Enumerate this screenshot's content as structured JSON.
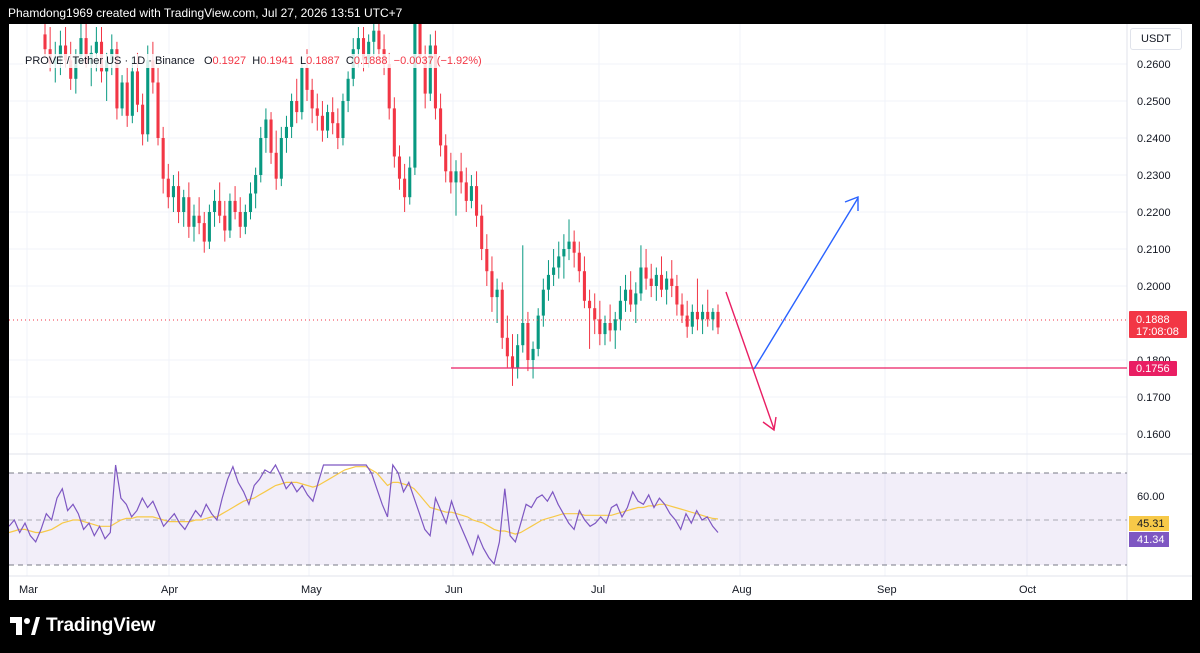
{
  "header": {
    "credit": "Phamdong1969 created with TradingView.com, Jul 27, 2026 13:51 UTC+7"
  },
  "legend": {
    "symbol": "PROVE / Tether US · 1D · Binance",
    "open_label": "O",
    "open": "0.1927",
    "high_label": "H",
    "high": "0.1941",
    "low_label": "L",
    "low": "0.1887",
    "close_label": "C",
    "close": "0.1888",
    "change": "−0.0037 (−1.92%)"
  },
  "price_axis": {
    "unit": "USDT",
    "ticks": [
      "0.2600",
      "0.2500",
      "0.2400",
      "0.2300",
      "0.2200",
      "0.2100",
      "0.2000",
      "0.1800",
      "0.1700",
      "0.1600"
    ]
  },
  "price_badge": {
    "price": "0.1888",
    "countdown": "17:08:08"
  },
  "support_badge": {
    "price": "0.1756"
  },
  "rsi": {
    "level_label": "60.00",
    "ma_value": "45.31",
    "rsi_value": "41.34"
  },
  "time_axis": {
    "labels": [
      "Mar",
      "Apr",
      "May",
      "Jun",
      "Jul",
      "Aug",
      "Sep",
      "Oct"
    ]
  },
  "footer": {
    "brand": "TradingView"
  },
  "colors": {
    "up": "#089981",
    "down": "#f23645",
    "rsi": "#7e57c2",
    "rsi_ma": "#f7c948",
    "arrow_up": "#2962ff",
    "arrow_down": "#e91e63"
  },
  "chart_data": {
    "type": "candlestick",
    "title": "PROVE / Tether US · 1D · Binance",
    "ylim": [
      0.155,
      0.265
    ],
    "support_level": 0.1756,
    "last_price": 0.1888,
    "x_labels": [
      "Mar",
      "Apr",
      "May",
      "Jun",
      "Jul",
      "Aug",
      "Sep",
      "Oct"
    ],
    "projection": [
      {
        "name": "down",
        "from": [
          0,
          0.196
        ],
        "to": [
          1,
          0.16
        ]
      },
      {
        "name": "up",
        "from": [
          1,
          0.1756
        ],
        "to": [
          2,
          0.221
        ]
      }
    ],
    "candles": [
      [
        0.268,
        0.272,
        0.262,
        0.264
      ],
      [
        0.264,
        0.27,
        0.258,
        0.26
      ],
      [
        0.26,
        0.266,
        0.255,
        0.262
      ],
      [
        0.262,
        0.269,
        0.257,
        0.265
      ],
      [
        0.265,
        0.27,
        0.259,
        0.261
      ],
      [
        0.261,
        0.266,
        0.253,
        0.256
      ],
      [
        0.256,
        0.264,
        0.252,
        0.262
      ],
      [
        0.262,
        0.271,
        0.26,
        0.267
      ],
      [
        0.267,
        0.271,
        0.259,
        0.26
      ],
      [
        0.26,
        0.265,
        0.254,
        0.263
      ],
      [
        0.263,
        0.27,
        0.258,
        0.266
      ],
      [
        0.266,
        0.27,
        0.255,
        0.258
      ],
      [
        0.258,
        0.263,
        0.25,
        0.261
      ],
      [
        0.261,
        0.268,
        0.257,
        0.264
      ],
      [
        0.264,
        0.266,
        0.245,
        0.248
      ],
      [
        0.248,
        0.257,
        0.246,
        0.255
      ],
      [
        0.255,
        0.259,
        0.243,
        0.246
      ],
      [
        0.246,
        0.262,
        0.244,
        0.258
      ],
      [
        0.258,
        0.263,
        0.247,
        0.249
      ],
      [
        0.249,
        0.252,
        0.238,
        0.241
      ],
      [
        0.241,
        0.265,
        0.239,
        0.261
      ],
      [
        0.261,
        0.266,
        0.252,
        0.255
      ],
      [
        0.255,
        0.259,
        0.238,
        0.24
      ],
      [
        0.24,
        0.243,
        0.225,
        0.229
      ],
      [
        0.229,
        0.233,
        0.221,
        0.224
      ],
      [
        0.224,
        0.23,
        0.22,
        0.227
      ],
      [
        0.227,
        0.231,
        0.217,
        0.22
      ],
      [
        0.22,
        0.226,
        0.216,
        0.224
      ],
      [
        0.224,
        0.228,
        0.213,
        0.216
      ],
      [
        0.216,
        0.222,
        0.212,
        0.219
      ],
      [
        0.219,
        0.224,
        0.214,
        0.217
      ],
      [
        0.217,
        0.22,
        0.209,
        0.212
      ],
      [
        0.212,
        0.222,
        0.21,
        0.22
      ],
      [
        0.22,
        0.226,
        0.216,
        0.223
      ],
      [
        0.223,
        0.228,
        0.217,
        0.219
      ],
      [
        0.219,
        0.223,
        0.212,
        0.215
      ],
      [
        0.215,
        0.225,
        0.213,
        0.223
      ],
      [
        0.223,
        0.227,
        0.218,
        0.22
      ],
      [
        0.22,
        0.224,
        0.213,
        0.216
      ],
      [
        0.216,
        0.222,
        0.214,
        0.22
      ],
      [
        0.22,
        0.228,
        0.218,
        0.225
      ],
      [
        0.225,
        0.232,
        0.221,
        0.23
      ],
      [
        0.23,
        0.243,
        0.228,
        0.24
      ],
      [
        0.24,
        0.248,
        0.236,
        0.245
      ],
      [
        0.245,
        0.247,
        0.233,
        0.236
      ],
      [
        0.236,
        0.242,
        0.226,
        0.229
      ],
      [
        0.229,
        0.243,
        0.227,
        0.24
      ],
      [
        0.24,
        0.246,
        0.236,
        0.243
      ],
      [
        0.243,
        0.252,
        0.24,
        0.25
      ],
      [
        0.25,
        0.256,
        0.244,
        0.247
      ],
      [
        0.247,
        0.262,
        0.245,
        0.259
      ],
      [
        0.259,
        0.264,
        0.25,
        0.253
      ],
      [
        0.253,
        0.256,
        0.244,
        0.248
      ],
      [
        0.248,
        0.252,
        0.242,
        0.246
      ],
      [
        0.246,
        0.25,
        0.239,
        0.242
      ],
      [
        0.242,
        0.249,
        0.24,
        0.247
      ],
      [
        0.247,
        0.251,
        0.241,
        0.244
      ],
      [
        0.244,
        0.248,
        0.237,
        0.24
      ],
      [
        0.24,
        0.252,
        0.238,
        0.25
      ],
      [
        0.25,
        0.258,
        0.247,
        0.256
      ],
      [
        0.256,
        0.267,
        0.254,
        0.264
      ],
      [
        0.264,
        0.27,
        0.259,
        0.267
      ],
      [
        0.267,
        0.27,
        0.258,
        0.261
      ],
      [
        0.261,
        0.268,
        0.259,
        0.266
      ],
      [
        0.266,
        0.272,
        0.262,
        0.269
      ],
      [
        0.269,
        0.273,
        0.261,
        0.264
      ],
      [
        0.264,
        0.268,
        0.257,
        0.26
      ],
      [
        0.26,
        0.263,
        0.245,
        0.248
      ],
      [
        0.248,
        0.251,
        0.232,
        0.235
      ],
      [
        0.235,
        0.238,
        0.226,
        0.229
      ],
      [
        0.229,
        0.233,
        0.22,
        0.224
      ],
      [
        0.224,
        0.235,
        0.222,
        0.232
      ],
      [
        0.232,
        0.275,
        0.23,
        0.271
      ],
      [
        0.271,
        0.274,
        0.26,
        0.262
      ],
      [
        0.262,
        0.265,
        0.248,
        0.252
      ],
      [
        0.252,
        0.268,
        0.25,
        0.265
      ],
      [
        0.265,
        0.269,
        0.245,
        0.248
      ],
      [
        0.248,
        0.252,
        0.235,
        0.238
      ],
      [
        0.238,
        0.241,
        0.228,
        0.231
      ],
      [
        0.231,
        0.236,
        0.225,
        0.228
      ],
      [
        0.228,
        0.234,
        0.219,
        0.231
      ],
      [
        0.231,
        0.236,
        0.225,
        0.228
      ],
      [
        0.228,
        0.232,
        0.22,
        0.223
      ],
      [
        0.223,
        0.23,
        0.221,
        0.227
      ],
      [
        0.227,
        0.231,
        0.216,
        0.219
      ],
      [
        0.219,
        0.222,
        0.207,
        0.21
      ],
      [
        0.21,
        0.214,
        0.2,
        0.204
      ],
      [
        0.204,
        0.208,
        0.193,
        0.197
      ],
      [
        0.197,
        0.202,
        0.19,
        0.199
      ],
      [
        0.199,
        0.201,
        0.183,
        0.186
      ],
      [
        0.186,
        0.192,
        0.178,
        0.181
      ],
      [
        0.181,
        0.187,
        0.173,
        0.178
      ],
      [
        0.178,
        0.187,
        0.175,
        0.184
      ],
      [
        0.184,
        0.211,
        0.182,
        0.19
      ],
      [
        0.19,
        0.193,
        0.177,
        0.18
      ],
      [
        0.18,
        0.185,
        0.175,
        0.183
      ],
      [
        0.183,
        0.194,
        0.181,
        0.192
      ],
      [
        0.192,
        0.202,
        0.189,
        0.199
      ],
      [
        0.199,
        0.207,
        0.196,
        0.203
      ],
      [
        0.203,
        0.21,
        0.2,
        0.205
      ],
      [
        0.205,
        0.212,
        0.202,
        0.208
      ],
      [
        0.208,
        0.214,
        0.202,
        0.21
      ],
      [
        0.21,
        0.218,
        0.207,
        0.212
      ],
      [
        0.212,
        0.215,
        0.205,
        0.209
      ],
      [
        0.209,
        0.212,
        0.201,
        0.204
      ],
      [
        0.204,
        0.208,
        0.194,
        0.196
      ],
      [
        0.196,
        0.199,
        0.183,
        0.194
      ],
      [
        0.194,
        0.198,
        0.187,
        0.191
      ],
      [
        0.191,
        0.196,
        0.184,
        0.187
      ],
      [
        0.187,
        0.192,
        0.184,
        0.19
      ],
      [
        0.19,
        0.195,
        0.185,
        0.188
      ],
      [
        0.188,
        0.193,
        0.183,
        0.191
      ],
      [
        0.191,
        0.2,
        0.188,
        0.196
      ],
      [
        0.196,
        0.203,
        0.193,
        0.199
      ],
      [
        0.199,
        0.204,
        0.193,
        0.195
      ],
      [
        0.195,
        0.201,
        0.19,
        0.198
      ],
      [
        0.198,
        0.211,
        0.196,
        0.205
      ],
      [
        0.205,
        0.21,
        0.199,
        0.202
      ],
      [
        0.202,
        0.206,
        0.197,
        0.2
      ],
      [
        0.2,
        0.205,
        0.196,
        0.203
      ],
      [
        0.203,
        0.208,
        0.197,
        0.199
      ],
      [
        0.199,
        0.204,
        0.195,
        0.202
      ],
      [
        0.202,
        0.207,
        0.197,
        0.2
      ],
      [
        0.2,
        0.203,
        0.192,
        0.195
      ],
      [
        0.195,
        0.198,
        0.19,
        0.192
      ],
      [
        0.192,
        0.196,
        0.186,
        0.189
      ],
      [
        0.189,
        0.195,
        0.187,
        0.193
      ],
      [
        0.193,
        0.202,
        0.188,
        0.191
      ],
      [
        0.191,
        0.195,
        0.187,
        0.193
      ],
      [
        0.193,
        0.199,
        0.189,
        0.191
      ],
      [
        0.191,
        0.194,
        0.188,
        0.193
      ],
      [
        0.193,
        0.195,
        0.187,
        0.1888
      ]
    ],
    "rsi": [
      43,
      45,
      41,
      44,
      40,
      38,
      42,
      47,
      45,
      52,
      55,
      48,
      50,
      47,
      42,
      44,
      40,
      43,
      39,
      41,
      74,
      52,
      50,
      46,
      48,
      52,
      49,
      51,
      47,
      43,
      45,
      47,
      44,
      42,
      45,
      48,
      46,
      50,
      47,
      45,
      52,
      58,
      62,
      57,
      54,
      50,
      56,
      58,
      61,
      60,
      63,
      59,
      55,
      57,
      54,
      56,
      53,
      51,
      57,
      63,
      68,
      71,
      73,
      70,
      64,
      66,
      68,
      63,
      60,
      55,
      50,
      46,
      83,
      60,
      54,
      57,
      52,
      47,
      42,
      40,
      52,
      48,
      44,
      51,
      46,
      42,
      38,
      34,
      40,
      36,
      33,
      31,
      38,
      55,
      40,
      38,
      44,
      50,
      49,
      52,
      53,
      51,
      54,
      50,
      47,
      44,
      42,
      48,
      45,
      43,
      44,
      46,
      44,
      49,
      50,
      46,
      49,
      54,
      51,
      50,
      53,
      49,
      52,
      50,
      47,
      45,
      42,
      47,
      44,
      48,
      45,
      46,
      43,
      41
    ],
    "rsi_ma": [
      41,
      41.5,
      42,
      42,
      41.5,
      41,
      41,
      41.5,
      42,
      43,
      44,
      44.5,
      45,
      45,
      44.5,
      44,
      43.5,
      43,
      43,
      43,
      44,
      45,
      45.5,
      45.5,
      46,
      46,
      46,
      46,
      45.5,
      45,
      44.5,
      44.5,
      44.5,
      44.5,
      44.5,
      45,
      45,
      45.5,
      46,
      46,
      47,
      48,
      49,
      50,
      51,
      51.5,
      52,
      53,
      54,
      55,
      56,
      56.5,
      57,
      57,
      57,
      56.5,
      56,
      55.5,
      56,
      57,
      58,
      59,
      60,
      61,
      61.5,
      62,
      62,
      62,
      61,
      60,
      58,
      56,
      57,
      57,
      56.5,
      56,
      55,
      53,
      51,
      49,
      48.5,
      48,
      47.5,
      47.5,
      47,
      46.5,
      46,
      45,
      44.5,
      44,
      43,
      42,
      41.5,
      41.5,
      41,
      40.5,
      41,
      42,
      43,
      44,
      45,
      45.5,
      46,
      46.5,
      47,
      47,
      47,
      47,
      46.5,
      46.5,
      46.5,
      46.5,
      46.5,
      46.5,
      47,
      47.5,
      48,
      48.5,
      49,
      49,
      49.5,
      49.5,
      50,
      50,
      49.5,
      49,
      48.5,
      48,
      47.5,
      47,
      46.5,
      46,
      45.5,
      45.31
    ]
  }
}
